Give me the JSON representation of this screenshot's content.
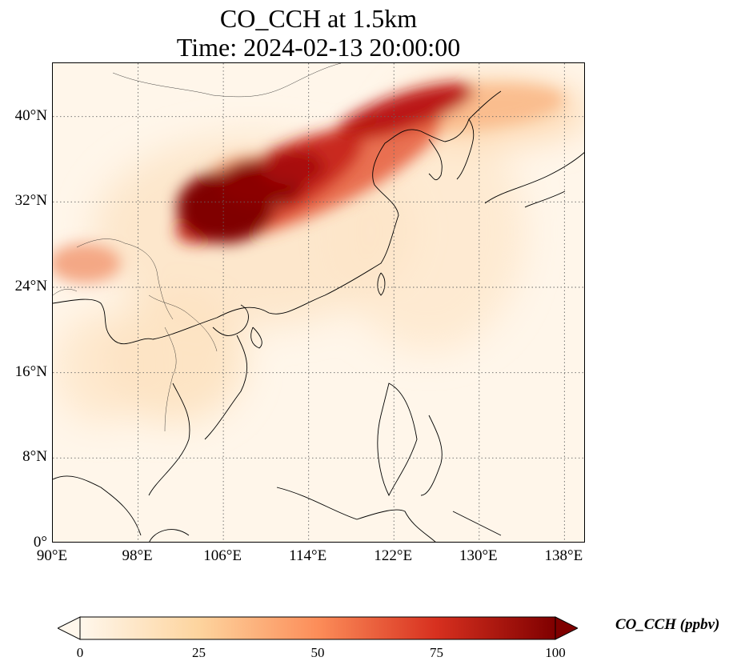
{
  "title_line1": "CO_CCH at 1.5km",
  "title_line2": "Time: 2024-02-13 20:00:00",
  "map": {
    "projection": "PlateCarree",
    "lon_range": [
      90,
      140
    ],
    "lat_range": [
      0,
      45
    ],
    "gridlines": "dotted",
    "lat_ticks": [
      {
        "value": 40,
        "label": "40°N"
      },
      {
        "value": 32,
        "label": "32°N"
      },
      {
        "value": 24,
        "label": "24°N"
      },
      {
        "value": 16,
        "label": "16°N"
      },
      {
        "value": 8,
        "label": "8°N"
      },
      {
        "value": 0,
        "label": "0°"
      }
    ],
    "lon_ticks": [
      {
        "value": 90,
        "label": "90°E"
      },
      {
        "value": 98,
        "label": "98°E"
      },
      {
        "value": 106,
        "label": "106°E"
      },
      {
        "value": 114,
        "label": "114°E"
      },
      {
        "value": 122,
        "label": "122°E"
      },
      {
        "value": 130,
        "label": "130°E"
      },
      {
        "value": 138,
        "label": "138°E"
      }
    ],
    "field": "CO_CCH",
    "plumes": [
      {
        "lon": 106,
        "lat": 31,
        "level": 100
      },
      {
        "lon": 110,
        "lat": 35,
        "level": 90
      },
      {
        "lon": 117,
        "lat": 38,
        "level": 80
      },
      {
        "lon": 124,
        "lat": 42,
        "level": 95
      },
      {
        "lon": 134,
        "lat": 41,
        "level": 30
      },
      {
        "lon": 93,
        "lat": 26,
        "level": 40
      },
      {
        "lon": 100,
        "lat": 17,
        "level": 20
      }
    ]
  },
  "colorbar": {
    "label": "CO_CCH (ppbv)",
    "colormap": "OrRd",
    "min": 0,
    "max": 100,
    "extend": "both",
    "ticks": [
      "0",
      "25",
      "50",
      "75",
      "100"
    ],
    "colors": [
      "#fff7ec",
      "#fdd49e",
      "#fc8d59",
      "#d7301f",
      "#7f0000"
    ]
  }
}
